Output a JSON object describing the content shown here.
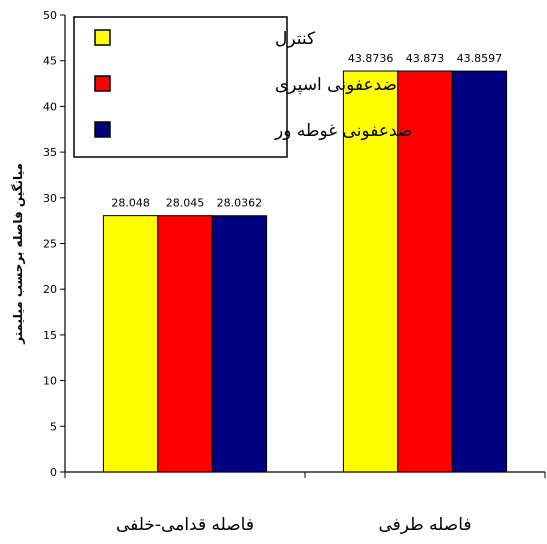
{
  "chart_data": {
    "type": "bar",
    "categories": [
      "فاصله قدامی-خلفی",
      "فاصله طرفی"
    ],
    "series": [
      {
        "name": "کنترل",
        "color": "#ffff00",
        "values": [
          28.048,
          43.8736
        ]
      },
      {
        "name": "ضدعفونی اسپری",
        "color": "#ff0000",
        "values": [
          28.045,
          43.873
        ]
      },
      {
        "name": "ضدعفونی غوطه ور",
        "color": "#000080",
        "values": [
          28.0362,
          43.8597
        ]
      }
    ],
    "data_labels": [
      [
        "28.048",
        "28.045",
        "28.0362"
      ],
      [
        "43.8736",
        "43.873",
        "43.8597"
      ]
    ],
    "ylabel": "میانگین فاصله برحسب میلیمتر",
    "xlabel": "",
    "ylim": [
      0,
      50
    ],
    "yticks": [
      0,
      5,
      10,
      15,
      20,
      25,
      30,
      35,
      40,
      45,
      50
    ],
    "grid": false,
    "legend_position": "top-left"
  }
}
